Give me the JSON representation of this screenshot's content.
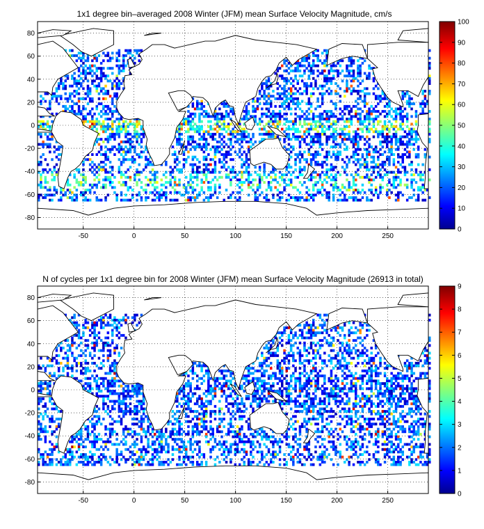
{
  "maps": [
    {
      "title": "1x1 degree bin–averaged 2008 Winter (JFM) mean Surface Velocity Magnitude, cm/s",
      "x_ticks": [
        "-50",
        "0",
        "50",
        "100",
        "150",
        "200",
        "250"
      ],
      "y_ticks": [
        "80",
        "60",
        "40",
        "20",
        "0",
        "-20",
        "-40",
        "-60",
        "-80"
      ],
      "colorbar_ticks": [
        "100",
        "90",
        "80",
        "70",
        "60",
        "50",
        "40",
        "30",
        "20",
        "10",
        "0"
      ],
      "colorbar_range": [
        0,
        100
      ],
      "colormap": "jet",
      "seed": 7
    },
    {
      "title": "N of cycles per 1x1 degree bin for 2008 Winter (JFM) mean Surface Velocity Magnitude (26913 in total)",
      "x_ticks": [
        "-50",
        "0",
        "50",
        "100",
        "150",
        "200",
        "250"
      ],
      "y_ticks": [
        "80",
        "60",
        "40",
        "20",
        "0",
        "-20",
        "-40",
        "-60",
        "-80"
      ],
      "colorbar_ticks": [
        "9",
        "8",
        "7",
        "6",
        "5",
        "4",
        "3",
        "2",
        "1",
        "0"
      ],
      "colorbar_range": [
        0,
        9
      ],
      "colormap": "jet",
      "seed": 23
    }
  ],
  "chart_data": [
    {
      "type": "heatmap",
      "title": "1x1 degree bin–averaged 2008 Winter (JFM) mean Surface Velocity Magnitude, cm/s",
      "xlim": [
        -95,
        290
      ],
      "ylim": [
        -90,
        90
      ],
      "x_ticks": [
        -50,
        0,
        50,
        100,
        150,
        200,
        250
      ],
      "y_ticks": [
        80,
        60,
        40,
        20,
        0,
        -20,
        -40,
        -60,
        -80
      ],
      "grid": true,
      "colorbar": {
        "min": 0,
        "max": 100,
        "colormap": "jet",
        "placement": "right"
      }
    },
    {
      "type": "heatmap",
      "title": "N of cycles per 1x1 degree bin for 2008 Winter (JFM) mean Surface Velocity Magnitude (26913 in total)",
      "xlim": [
        -95,
        290
      ],
      "ylim": [
        -90,
        90
      ],
      "x_ticks": [
        -50,
        0,
        50,
        100,
        150,
        200,
        250
      ],
      "y_ticks": [
        80,
        60,
        40,
        20,
        0,
        -20,
        -40,
        -60,
        -80
      ],
      "grid": true,
      "colorbar": {
        "min": 0,
        "max": 9,
        "colormap": "jet",
        "placement": "right"
      }
    }
  ]
}
